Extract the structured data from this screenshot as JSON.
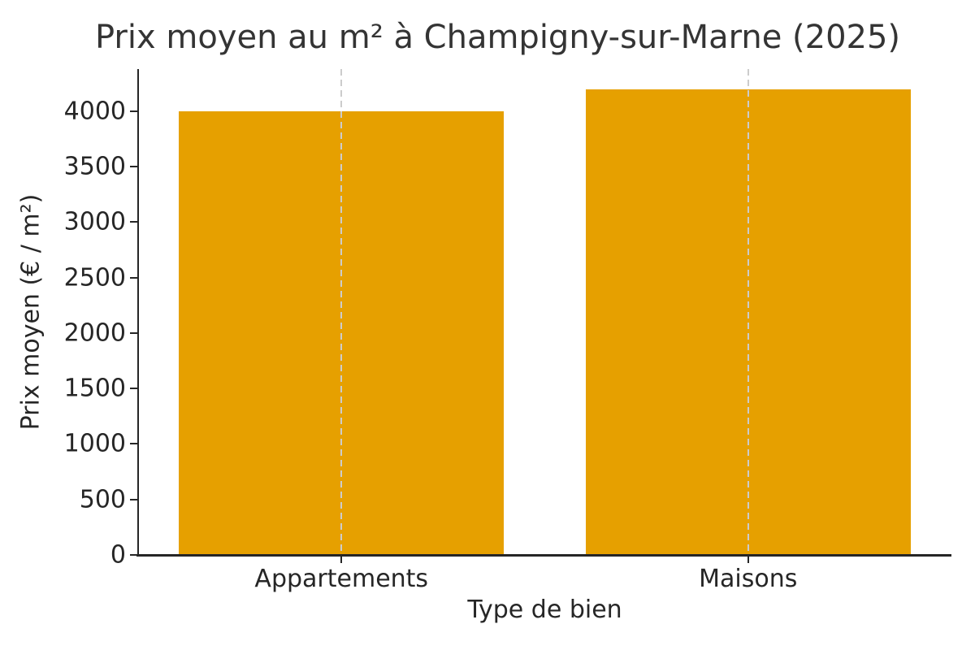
{
  "chart_data": {
    "type": "bar",
    "title": "Prix moyen au m² à Champigny-sur-Marne (2025)",
    "categories": [
      "Appartements",
      "Maisons"
    ],
    "values": [
      4000,
      4200
    ],
    "xlabel": "Type de bien",
    "ylabel": "Prix moyen (€ / m²)",
    "ylim": [
      0,
      4380
    ],
    "yticks": [
      0,
      500,
      1000,
      1500,
      2000,
      2500,
      3000,
      3500,
      4000
    ],
    "bar_color": "#E6A000",
    "bar_width_fraction": 0.8,
    "grid": {
      "orientation": "vertical",
      "style": "dashed",
      "color": "#cccccc",
      "positions": "bar-centers"
    },
    "legend": "none",
    "axes_color": "#262626",
    "title_color": "#343434",
    "tick_color": "#262626"
  }
}
